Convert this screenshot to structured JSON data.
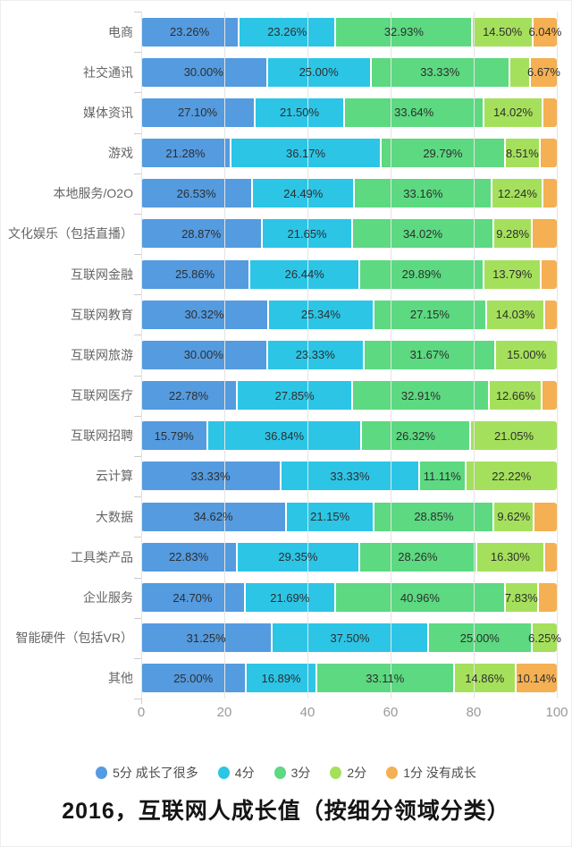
{
  "chart_data": {
    "type": "bar",
    "orientation": "horizontal",
    "stacked": true,
    "title": "2016，互联网人成长值（按细分领域分类）",
    "xlabel": "",
    "ylabel": "",
    "xlim": [
      0,
      100
    ],
    "xticks": [
      0,
      20,
      40,
      60,
      80,
      100
    ],
    "grid": "vertical-lines",
    "legend_position": "bottom",
    "categories": [
      "电商",
      "社交通讯",
      "媒体资讯",
      "游戏",
      "本地服务/O2O",
      "文化娱乐（包括直播）",
      "互联网金融",
      "互联网教育",
      "互联网旅游",
      "互联网医疗",
      "互联网招聘",
      "云计算",
      "大数据",
      "工具类产品",
      "企业服务",
      "智能硬件（包括VR）",
      "其他"
    ],
    "series": [
      {
        "name": "5分 成长了很多",
        "color": "#549be0",
        "values": [
          23.26,
          30.0,
          27.1,
          21.28,
          26.53,
          28.87,
          25.86,
          30.32,
          30.0,
          22.78,
          15.79,
          33.33,
          34.62,
          22.83,
          24.7,
          31.25,
          25.0
        ],
        "labels": [
          "23.26%",
          "30.00%",
          "27.10%",
          "21.28%",
          "26.53%",
          "28.87%",
          "25.86%",
          "30.32%",
          "30.00%",
          "22.78%",
          "15.79%",
          "33.33%",
          "34.62%",
          "22.83%",
          "24.70%",
          "31.25%",
          "25.00%"
        ]
      },
      {
        "name": "4分",
        "color": "#2cc5e6",
        "values": [
          23.26,
          25.0,
          21.5,
          36.17,
          24.49,
          21.65,
          26.44,
          25.34,
          23.33,
          27.85,
          36.84,
          33.33,
          21.15,
          29.35,
          21.69,
          37.5,
          16.89
        ],
        "labels": [
          "23.26%",
          "25.00%",
          "21.50%",
          "36.17%",
          "24.49%",
          "21.65%",
          "26.44%",
          "25.34%",
          "23.33%",
          "27.85%",
          "36.84%",
          "33.33%",
          "21.15%",
          "29.35%",
          "21.69%",
          "37.50%",
          "16.89%"
        ]
      },
      {
        "name": "3分",
        "color": "#5cd981",
        "values": [
          32.93,
          33.33,
          33.64,
          29.79,
          33.16,
          34.02,
          29.89,
          27.15,
          31.67,
          32.91,
          26.32,
          11.11,
          28.85,
          28.26,
          40.96,
          25.0,
          33.11
        ],
        "labels": [
          "32.93%",
          "33.33%",
          "33.64%",
          "29.79%",
          "33.16%",
          "34.02%",
          "29.89%",
          "27.15%",
          "31.67%",
          "32.91%",
          "26.32%",
          "11.11%",
          "28.85%",
          "28.26%",
          "40.96%",
          "25.00%",
          "33.11%"
        ]
      },
      {
        "name": "2分",
        "color": "#a5e05c",
        "values": [
          14.5,
          5.0,
          14.02,
          8.51,
          12.24,
          9.28,
          13.79,
          14.03,
          15.0,
          12.66,
          21.05,
          22.22,
          9.62,
          16.3,
          7.83,
          6.25,
          14.86
        ],
        "labels": [
          "14.50%",
          null,
          "14.02%",
          "8.51%",
          "12.24%",
          "9.28%",
          "13.79%",
          "14.03%",
          "15.00%",
          "12.66%",
          "21.05%",
          "22.22%",
          "9.62%",
          "16.30%",
          "7.83%",
          "6.25%",
          "14.86%"
        ]
      },
      {
        "name": "1分 没有成长",
        "color": "#f4b052",
        "values": [
          6.04,
          6.67,
          3.74,
          4.25,
          3.58,
          6.18,
          4.02,
          3.16,
          0,
          3.8,
          0,
          0,
          5.76,
          3.26,
          4.82,
          0,
          10.14
        ],
        "labels": [
          "6.04%",
          "6.67%",
          null,
          null,
          null,
          null,
          null,
          null,
          null,
          null,
          null,
          null,
          null,
          null,
          null,
          null,
          "10.14%"
        ]
      }
    ]
  }
}
